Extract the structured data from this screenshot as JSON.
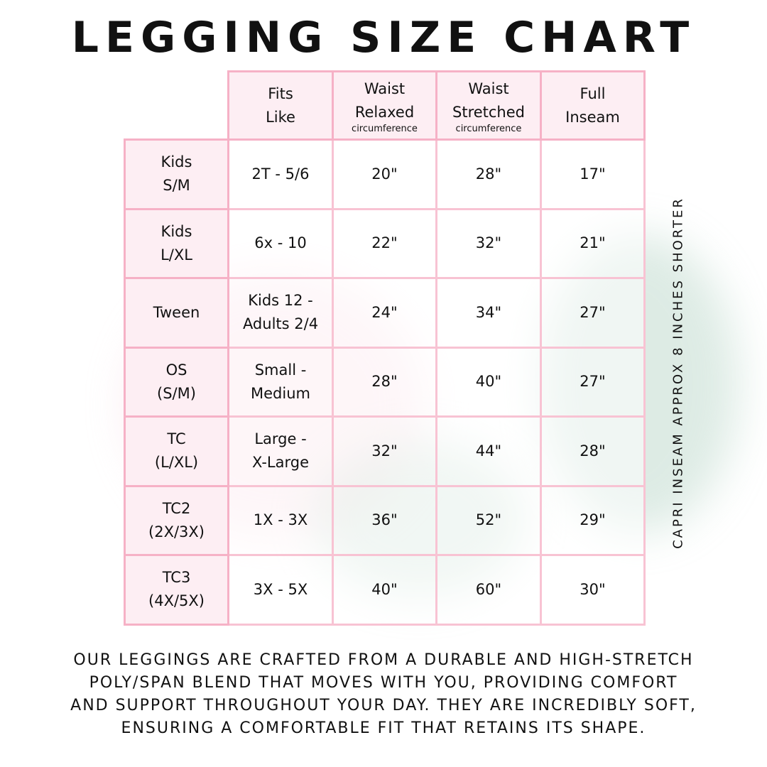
{
  "title": "LEGGING SIZE CHART",
  "colors": {
    "border": "#f6b1c6",
    "header_fill": "#fdeef3"
  },
  "table": {
    "headers": [
      {
        "line1": "Fits",
        "line2": "Like",
        "sub": ""
      },
      {
        "line1": "Waist",
        "line2": "Relaxed",
        "sub": "circumference"
      },
      {
        "line1": "Waist",
        "line2": "Stretched",
        "sub": "circumference"
      },
      {
        "line1": "Full",
        "line2": "Inseam",
        "sub": ""
      }
    ],
    "rows": [
      {
        "l1": "Kids",
        "l2": "S/M",
        "fits1": "2T - 5/6",
        "fits2": "",
        "relaxed": "20\"",
        "stretched": "28\"",
        "inseam": "17\""
      },
      {
        "l1": "Kids",
        "l2": "L/XL",
        "fits1": "6x - 10",
        "fits2": "",
        "relaxed": "22\"",
        "stretched": "32\"",
        "inseam": "21\""
      },
      {
        "l1": "Tween",
        "l2": "",
        "fits1": "Kids 12 -",
        "fits2": "Adults 2/4",
        "relaxed": "24\"",
        "stretched": "34\"",
        "inseam": "27\""
      },
      {
        "l1": "OS",
        "l2": "(S/M)",
        "fits1": "Small -",
        "fits2": "Medium",
        "relaxed": "28\"",
        "stretched": "40\"",
        "inseam": "27\""
      },
      {
        "l1": "TC",
        "l2": "(L/XL)",
        "fits1": "Large -",
        "fits2": "X-Large",
        "relaxed": "32\"",
        "stretched": "44\"",
        "inseam": "28\""
      },
      {
        "l1": "TC2",
        "l2": "(2X/3X)",
        "fits1": "1X - 3X",
        "fits2": "",
        "relaxed": "36\"",
        "stretched": "52\"",
        "inseam": "29\""
      },
      {
        "l1": "TC3",
        "l2": "(4X/5X)",
        "fits1": "3X - 5X",
        "fits2": "",
        "relaxed": "40\"",
        "stretched": "60\"",
        "inseam": "30\""
      }
    ]
  },
  "side_note": "CAPRI INSEAM APPROX 8 INCHES SHORTER",
  "footer": [
    "OUR LEGGINGS ARE CRAFTED FROM A DURABLE AND HIGH-STRETCH",
    "POLY/SPAN BLEND THAT MOVES WITH YOU, PROVIDING COMFORT",
    "AND SUPPORT THROUGHOUT YOUR DAY. THEY ARE INCREDIBLY SOFT,",
    "ENSURING A COMFORTABLE FIT THAT RETAINS ITS SHAPE."
  ]
}
